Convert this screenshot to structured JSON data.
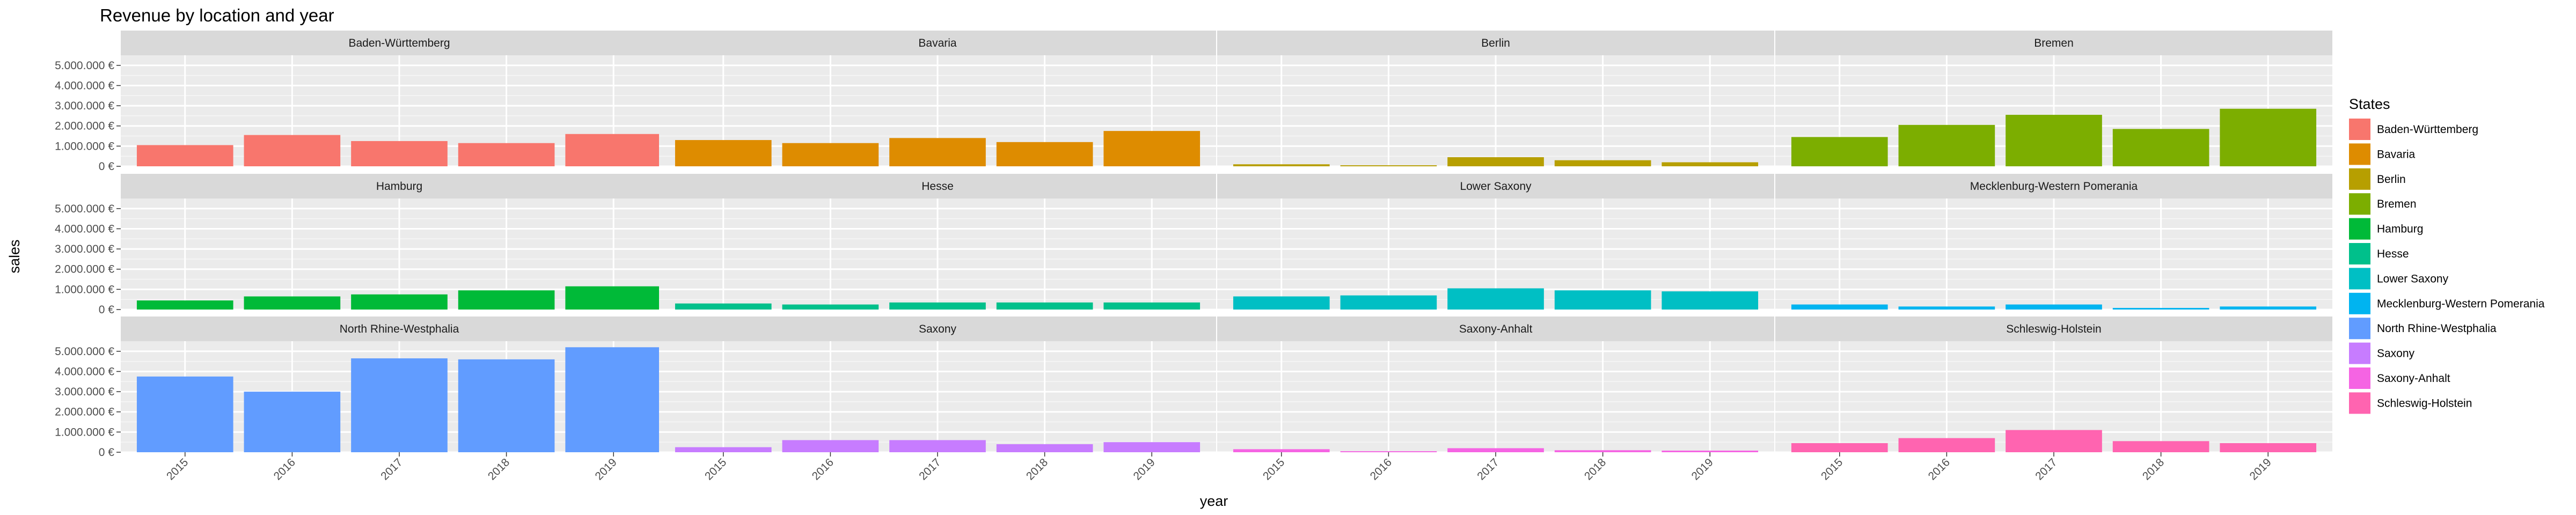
{
  "chart_data": {
    "type": "bar",
    "title": "Revenue by location and year",
    "xlabel": "year",
    "ylabel": "sales",
    "categories": [
      "2015",
      "2016",
      "2017",
      "2018",
      "2019"
    ],
    "ylim": [
      0,
      5500000
    ],
    "yticks": [
      0,
      1000000,
      2000000,
      3000000,
      4000000,
      5000000
    ],
    "ytick_labels": [
      "0 €",
      "1.000.000 €",
      "2.000.000 €",
      "3.000.000 €",
      "4.000.000 €",
      "5.000.000 €"
    ],
    "facet_columns": 4,
    "grid": true,
    "legend": {
      "title": "States",
      "placement": "right"
    },
    "series": [
      {
        "name": "Baden-Württemberg",
        "color": "#F8766D",
        "values": [
          1050000,
          1550000,
          1250000,
          1150000,
          1600000
        ]
      },
      {
        "name": "Bavaria",
        "color": "#DE8C00",
        "values": [
          1300000,
          1150000,
          1400000,
          1200000,
          1750000
        ]
      },
      {
        "name": "Berlin",
        "color": "#B79F00",
        "values": [
          100000,
          50000,
          450000,
          300000,
          200000
        ]
      },
      {
        "name": "Bremen",
        "color": "#7CAE00",
        "values": [
          1450000,
          2050000,
          2550000,
          1850000,
          2850000
        ]
      },
      {
        "name": "Hamburg",
        "color": "#00BA38",
        "values": [
          450000,
          650000,
          750000,
          950000,
          1150000
        ]
      },
      {
        "name": "Hesse",
        "color": "#00C08B",
        "values": [
          300000,
          250000,
          350000,
          350000,
          350000
        ]
      },
      {
        "name": "Lower Saxony",
        "color": "#00BFC4",
        "values": [
          650000,
          700000,
          1050000,
          950000,
          900000
        ]
      },
      {
        "name": "Mecklenburg-Western Pomerania",
        "color": "#00B4F0",
        "values": [
          250000,
          150000,
          250000,
          80000,
          150000
        ]
      },
      {
        "name": "North Rhine-Westphalia",
        "color": "#619CFF",
        "values": [
          3750000,
          3000000,
          4650000,
          4600000,
          5200000
        ]
      },
      {
        "name": "Saxony",
        "color": "#C77CFF",
        "values": [
          250000,
          600000,
          600000,
          400000,
          500000
        ]
      },
      {
        "name": "Saxony-Anhalt",
        "color": "#F564E3",
        "values": [
          150000,
          50000,
          200000,
          100000,
          80000
        ]
      },
      {
        "name": "Schleswig-Holstein",
        "color": "#FF64B0",
        "values": [
          450000,
          700000,
          1100000,
          550000,
          450000
        ]
      }
    ]
  }
}
